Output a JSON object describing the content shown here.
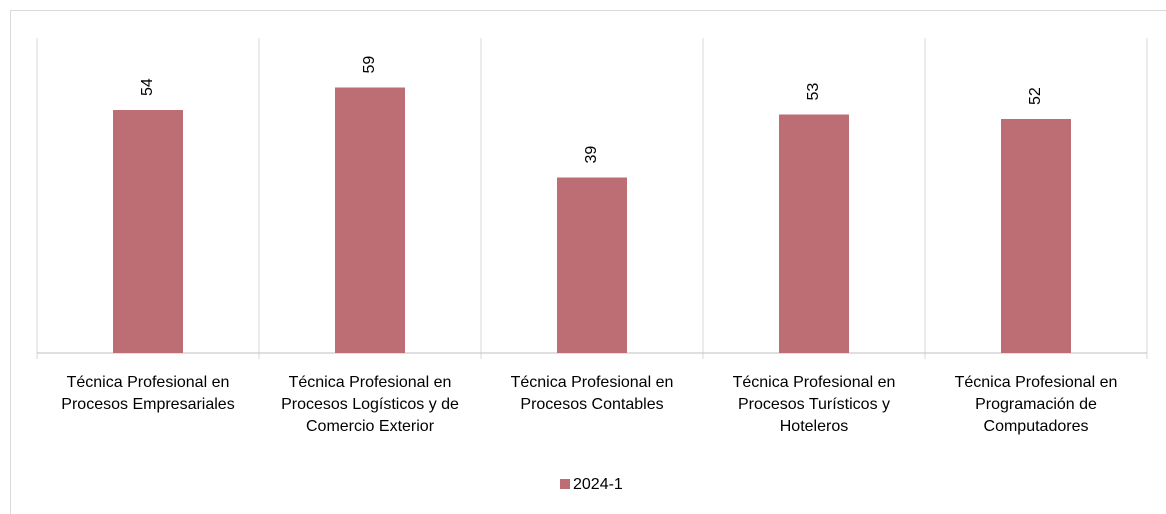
{
  "chart_data": {
    "type": "bar",
    "categories": [
      "Técnica Profesional en Procesos Empresariales",
      "Técnica Profesional en Procesos Logísticos y de Comercio Exterior",
      "Técnica Profesional en Procesos Contables",
      "Técnica Profesional en Procesos Turísticos y Hoteleros",
      "Técnica Profesional en Programación de Computadores"
    ],
    "series": [
      {
        "name": "2024-1",
        "color": "#bc6e74",
        "values": [
          54,
          59,
          39,
          53,
          52
        ]
      }
    ],
    "ylim": [
      0,
      70
    ],
    "legend": "bottom"
  }
}
